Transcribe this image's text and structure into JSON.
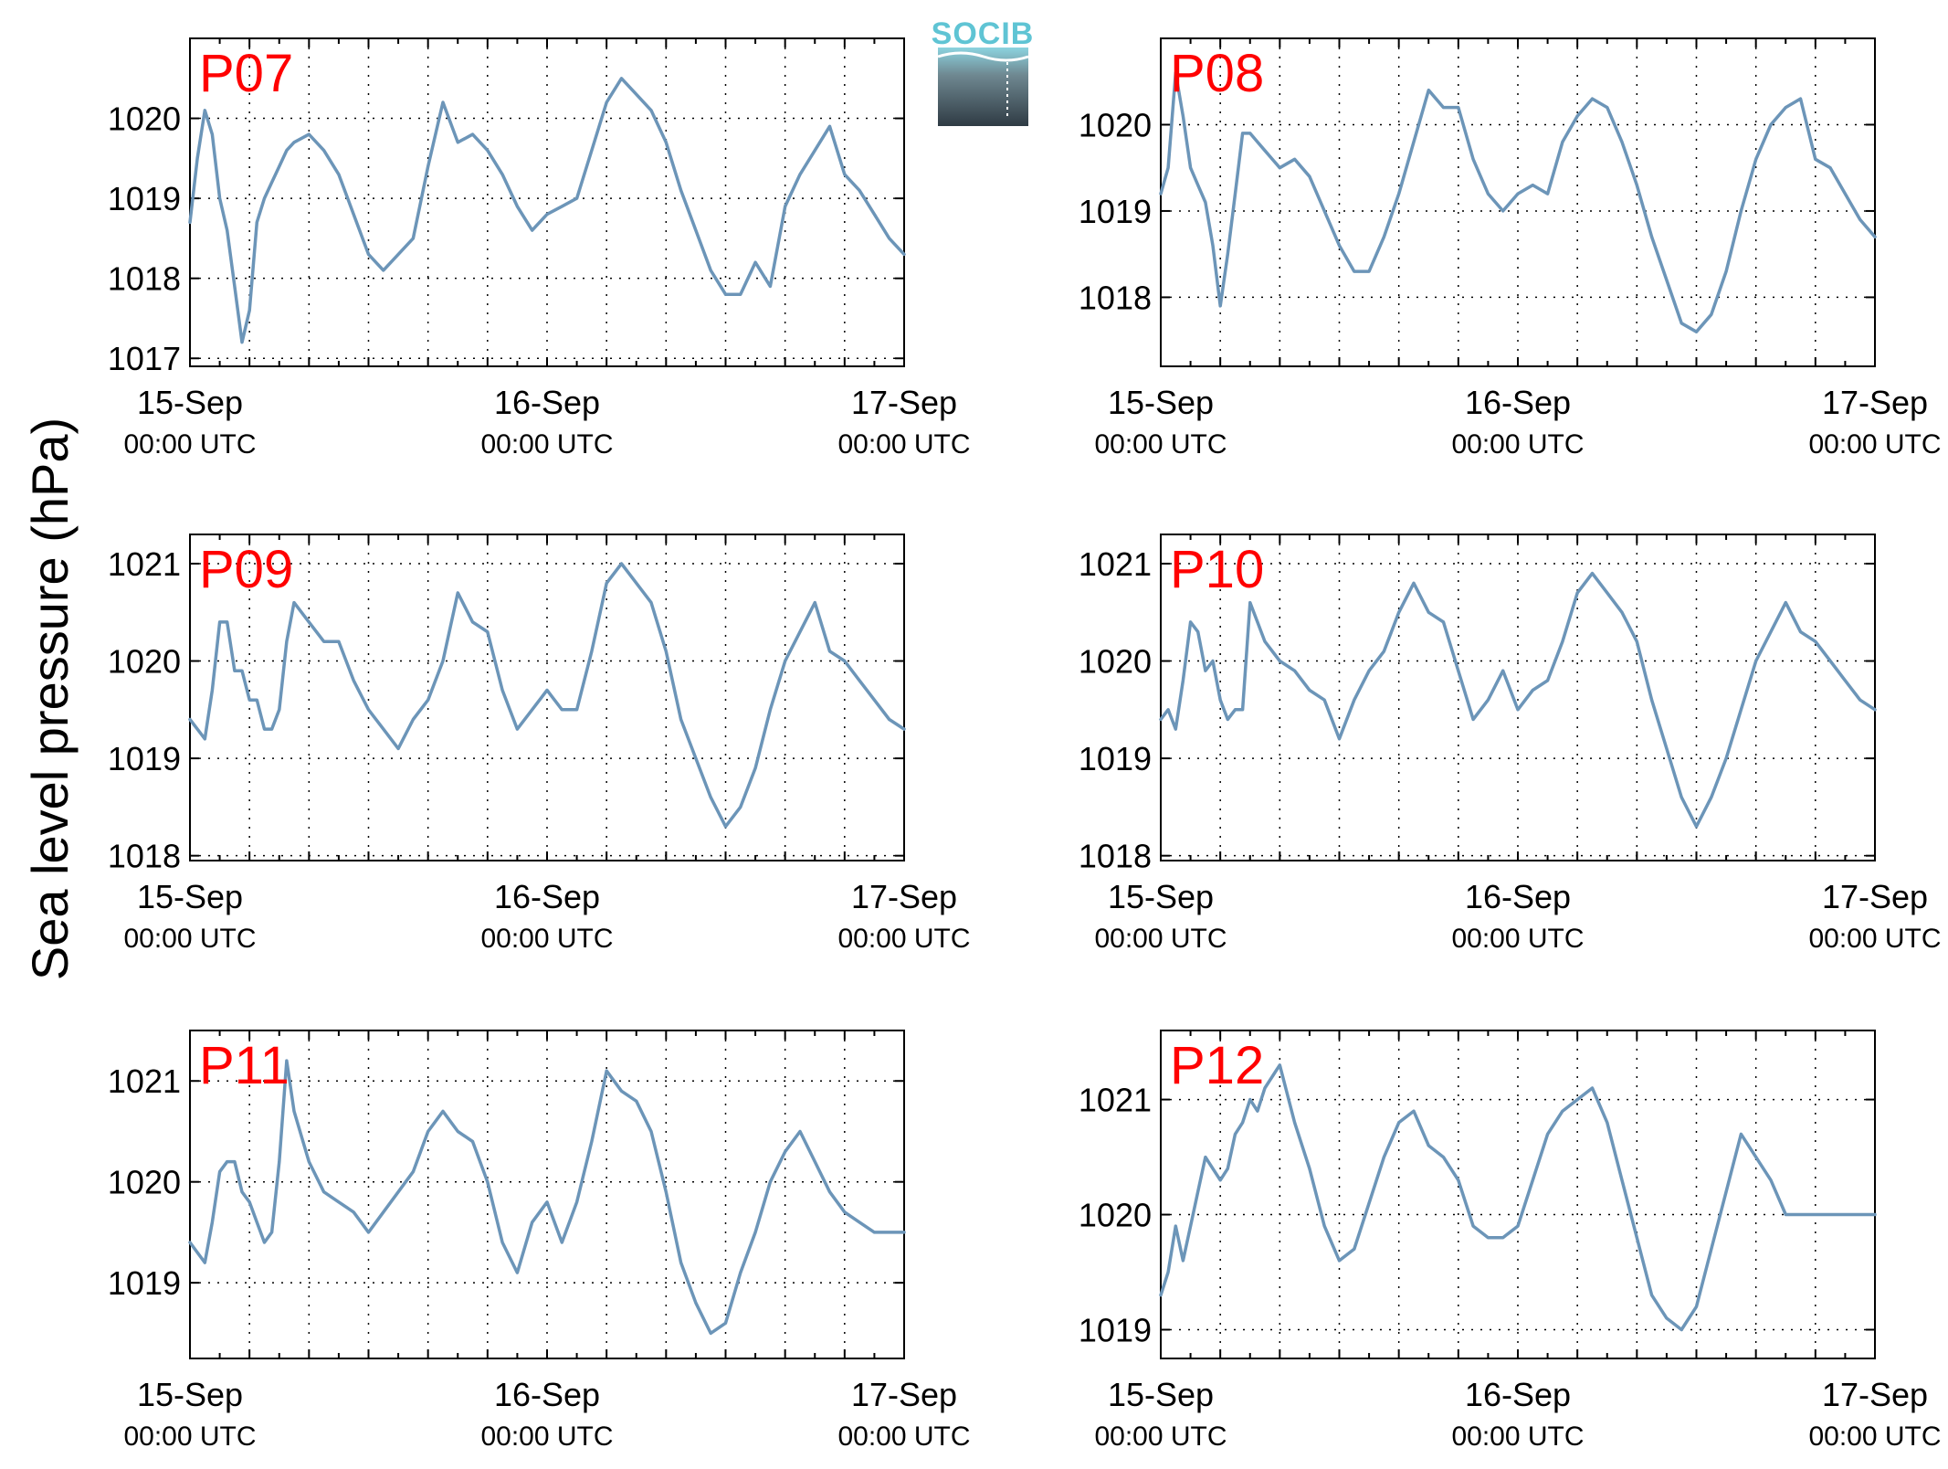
{
  "figure": {
    "ylabel": "Sea level pressure (hPa)",
    "logo_text": "SOCIB"
  },
  "colors": {
    "line": "#6c95b8",
    "label": "#ff0000",
    "logo_text": "#5fc4d4"
  },
  "chart_data": [
    {
      "type": "line",
      "label": "P07",
      "x_unit": "hours since 15-Sep 00:00 UTC",
      "xlim": [
        0,
        48
      ],
      "ylim": [
        1016.9,
        1021.0
      ],
      "yticks": [
        1017,
        1018,
        1019,
        1020
      ],
      "xticks": [
        {
          "at": 0,
          "date": "15-Sep",
          "time": "00:00 UTC"
        },
        {
          "at": 24,
          "date": "16-Sep",
          "time": "00:00 UTC"
        },
        {
          "at": 48,
          "date": "17-Sep",
          "time": "00:00 UTC"
        }
      ],
      "grid": true,
      "series": [
        {
          "x": [
            0,
            0.5,
            1,
            1.5,
            2,
            2.5,
            3,
            3.5,
            4,
            4.5,
            5,
            5.5,
            6,
            6.5,
            7,
            8,
            9,
            10,
            11,
            12,
            13,
            14,
            15,
            16,
            17,
            18,
            19,
            20,
            21,
            22,
            23,
            24,
            25,
            26,
            27,
            28,
            29,
            30,
            31,
            32,
            33,
            34,
            35,
            36,
            37,
            38,
            39,
            40,
            41,
            42,
            43,
            44,
            45,
            46,
            47,
            48
          ],
          "y": [
            1018.7,
            1019.5,
            1020.1,
            1019.8,
            1019.0,
            1018.6,
            1017.9,
            1017.2,
            1017.6,
            1018.7,
            1019.0,
            1019.2,
            1019.4,
            1019.6,
            1019.7,
            1019.8,
            1019.6,
            1019.3,
            1018.8,
            1018.3,
            1018.1,
            1018.3,
            1018.5,
            1019.4,
            1020.2,
            1019.7,
            1019.8,
            1019.6,
            1019.3,
            1018.9,
            1018.6,
            1018.8,
            1018.9,
            1019.0,
            1019.6,
            1020.2,
            1020.5,
            1020.3,
            1020.1,
            1019.7,
            1019.1,
            1018.6,
            1018.1,
            1017.8,
            1017.8,
            1018.2,
            1017.9,
            1018.9,
            1019.3,
            1019.6,
            1019.9,
            1019.3,
            1019.1,
            1018.8,
            1018.5,
            1018.3
          ]
        }
      ]
    },
    {
      "type": "line",
      "label": "P08",
      "x_unit": "hours since 15-Sep 00:00 UTC",
      "xlim": [
        0,
        48
      ],
      "ylim": [
        1017.2,
        1021.0
      ],
      "yticks": [
        1018,
        1019,
        1020
      ],
      "xticks": [
        {
          "at": 0,
          "date": "15-Sep",
          "time": "00:00 UTC"
        },
        {
          "at": 24,
          "date": "16-Sep",
          "time": "00:00 UTC"
        },
        {
          "at": 48,
          "date": "17-Sep",
          "time": "00:00 UTC"
        }
      ],
      "grid": true,
      "series": [
        {
          "x": [
            0,
            0.5,
            1,
            1.5,
            2,
            2.5,
            3,
            3.5,
            4,
            4.5,
            5,
            5.5,
            6,
            6.5,
            7,
            8,
            9,
            10,
            11,
            12,
            13,
            14,
            15,
            16,
            17,
            18,
            19,
            20,
            21,
            22,
            23,
            24,
            25,
            26,
            27,
            28,
            29,
            30,
            31,
            32,
            33,
            34,
            35,
            36,
            37,
            38,
            39,
            40,
            41,
            42,
            43,
            44,
            45,
            46,
            47,
            48
          ],
          "y": [
            1019.2,
            1019.5,
            1020.6,
            1020.1,
            1019.5,
            1019.3,
            1019.1,
            1018.6,
            1017.9,
            1018.5,
            1019.2,
            1019.9,
            1019.9,
            1019.8,
            1019.7,
            1019.5,
            1019.6,
            1019.4,
            1019.0,
            1018.6,
            1018.3,
            1018.3,
            1018.7,
            1019.2,
            1019.8,
            1020.4,
            1020.2,
            1020.2,
            1019.6,
            1019.2,
            1019.0,
            1019.2,
            1019.3,
            1019.2,
            1019.8,
            1020.1,
            1020.3,
            1020.2,
            1019.8,
            1019.3,
            1018.7,
            1018.2,
            1017.7,
            1017.6,
            1017.8,
            1018.3,
            1019.0,
            1019.6,
            1020.0,
            1020.2,
            1020.3,
            1019.6,
            1019.5,
            1019.2,
            1018.9,
            1018.7
          ]
        }
      ]
    },
    {
      "type": "line",
      "label": "P09",
      "x_unit": "hours since 15-Sep 00:00 UTC",
      "xlim": [
        0,
        48
      ],
      "ylim": [
        1017.95,
        1021.3
      ],
      "yticks": [
        1018,
        1019,
        1020,
        1021
      ],
      "xticks": [
        {
          "at": 0,
          "date": "15-Sep",
          "time": "00:00 UTC"
        },
        {
          "at": 24,
          "date": "16-Sep",
          "time": "00:00 UTC"
        },
        {
          "at": 48,
          "date": "17-Sep",
          "time": "00:00 UTC"
        }
      ],
      "grid": true,
      "series": [
        {
          "x": [
            0,
            0.5,
            1,
            1.5,
            2,
            2.5,
            3,
            3.5,
            4,
            4.5,
            5,
            5.5,
            6,
            6.5,
            7,
            8,
            9,
            10,
            11,
            12,
            13,
            14,
            15,
            16,
            17,
            18,
            19,
            20,
            21,
            22,
            23,
            24,
            25,
            26,
            27,
            28,
            29,
            30,
            31,
            32,
            33,
            34,
            35,
            36,
            37,
            38,
            39,
            40,
            41,
            42,
            43,
            44,
            45,
            46,
            47,
            48
          ],
          "y": [
            1019.4,
            1019.3,
            1019.2,
            1019.7,
            1020.4,
            1020.4,
            1019.9,
            1019.9,
            1019.6,
            1019.6,
            1019.3,
            1019.3,
            1019.5,
            1020.2,
            1020.6,
            1020.4,
            1020.2,
            1020.2,
            1019.8,
            1019.5,
            1019.3,
            1019.1,
            1019.4,
            1019.6,
            1020.0,
            1020.7,
            1020.4,
            1020.3,
            1019.7,
            1019.3,
            1019.5,
            1019.7,
            1019.5,
            1019.5,
            1020.1,
            1020.8,
            1021.0,
            1020.8,
            1020.6,
            1020.1,
            1019.4,
            1019.0,
            1018.6,
            1018.3,
            1018.5,
            1018.9,
            1019.5,
            1020.0,
            1020.3,
            1020.6,
            1020.1,
            1020.0,
            1019.8,
            1019.6,
            1019.4,
            1019.3
          ]
        }
      ]
    },
    {
      "type": "line",
      "label": "P10",
      "x_unit": "hours since 15-Sep 00:00 UTC",
      "xlim": [
        0,
        48
      ],
      "ylim": [
        1017.95,
        1021.3
      ],
      "yticks": [
        1018,
        1019,
        1020,
        1021
      ],
      "xticks": [
        {
          "at": 0,
          "date": "15-Sep",
          "time": "00:00 UTC"
        },
        {
          "at": 24,
          "date": "16-Sep",
          "time": "00:00 UTC"
        },
        {
          "at": 48,
          "date": "17-Sep",
          "time": "00:00 UTC"
        }
      ],
      "grid": true,
      "series": [
        {
          "x": [
            0,
            0.5,
            1,
            1.5,
            2,
            2.5,
            3,
            3.5,
            4,
            4.5,
            5,
            5.5,
            6,
            6.5,
            7,
            8,
            9,
            10,
            11,
            12,
            13,
            14,
            15,
            16,
            17,
            18,
            19,
            20,
            21,
            22,
            23,
            24,
            25,
            26,
            27,
            28,
            29,
            30,
            31,
            32,
            33,
            34,
            35,
            36,
            37,
            38,
            39,
            40,
            41,
            42,
            43,
            44,
            45,
            46,
            47,
            48
          ],
          "y": [
            1019.4,
            1019.5,
            1019.3,
            1019.8,
            1020.4,
            1020.3,
            1019.9,
            1020.0,
            1019.6,
            1019.4,
            1019.5,
            1019.5,
            1020.6,
            1020.4,
            1020.2,
            1020.0,
            1019.9,
            1019.7,
            1019.6,
            1019.2,
            1019.6,
            1019.9,
            1020.1,
            1020.5,
            1020.8,
            1020.5,
            1020.4,
            1019.9,
            1019.4,
            1019.6,
            1019.9,
            1019.5,
            1019.7,
            1019.8,
            1020.2,
            1020.7,
            1020.9,
            1020.7,
            1020.5,
            1020.2,
            1019.6,
            1019.1,
            1018.6,
            1018.3,
            1018.6,
            1019.0,
            1019.5,
            1020.0,
            1020.3,
            1020.6,
            1020.3,
            1020.2,
            1020.0,
            1019.8,
            1019.6,
            1019.5
          ]
        }
      ]
    },
    {
      "type": "line",
      "label": "P11",
      "x_unit": "hours since 15-Sep 00:00 UTC",
      "xlim": [
        0,
        48
      ],
      "ylim": [
        1018.25,
        1021.5
      ],
      "yticks": [
        1019,
        1020,
        1021
      ],
      "xticks": [
        {
          "at": 0,
          "date": "15-Sep",
          "time": "00:00 UTC"
        },
        {
          "at": 24,
          "date": "16-Sep",
          "time": "00:00 UTC"
        },
        {
          "at": 48,
          "date": "17-Sep",
          "time": "00:00 UTC"
        }
      ],
      "grid": true,
      "series": [
        {
          "x": [
            0,
            0.5,
            1,
            1.5,
            2,
            2.5,
            3,
            3.5,
            4,
            4.5,
            5,
            5.5,
            6,
            6.5,
            7,
            8,
            9,
            10,
            11,
            12,
            13,
            14,
            15,
            16,
            17,
            18,
            19,
            20,
            21,
            22,
            23,
            24,
            25,
            26,
            27,
            28,
            29,
            30,
            31,
            32,
            33,
            34,
            35,
            36,
            37,
            38,
            39,
            40,
            41,
            42,
            43,
            44,
            45,
            46,
            47,
            48
          ],
          "y": [
            1019.4,
            1019.3,
            1019.2,
            1019.6,
            1020.1,
            1020.2,
            1020.2,
            1019.9,
            1019.8,
            1019.6,
            1019.4,
            1019.5,
            1020.2,
            1021.2,
            1020.7,
            1020.2,
            1019.9,
            1019.8,
            1019.7,
            1019.5,
            1019.7,
            1019.9,
            1020.1,
            1020.5,
            1020.7,
            1020.5,
            1020.4,
            1020.0,
            1019.4,
            1019.1,
            1019.6,
            1019.8,
            1019.4,
            1019.8,
            1020.4,
            1021.1,
            1020.9,
            1020.8,
            1020.5,
            1019.9,
            1019.2,
            1018.8,
            1018.5,
            1018.6,
            1019.1,
            1019.5,
            1020.0,
            1020.3,
            1020.5,
            1020.2,
            1019.9,
            1019.7,
            1019.6,
            1019.5,
            1019.5,
            1019.5
          ]
        }
      ]
    },
    {
      "type": "line",
      "label": "P12",
      "x_unit": "hours since 15-Sep 00:00 UTC",
      "xlim": [
        0,
        48
      ],
      "ylim": [
        1018.75,
        1021.6
      ],
      "yticks": [
        1019,
        1020,
        1021
      ],
      "xticks": [
        {
          "at": 0,
          "date": "15-Sep",
          "time": "00:00 UTC"
        },
        {
          "at": 24,
          "date": "16-Sep",
          "time": "00:00 UTC"
        },
        {
          "at": 48,
          "date": "17-Sep",
          "time": "00:00 UTC"
        }
      ],
      "grid": true,
      "series": [
        {
          "x": [
            0,
            0.5,
            1,
            1.5,
            2,
            2.5,
            3,
            3.5,
            4,
            4.5,
            5,
            5.5,
            6,
            6.5,
            7,
            8,
            9,
            10,
            11,
            12,
            13,
            14,
            15,
            16,
            17,
            18,
            19,
            20,
            21,
            22,
            23,
            24,
            25,
            26,
            27,
            28,
            29,
            30,
            31,
            32,
            33,
            34,
            35,
            36,
            37,
            38,
            39,
            40,
            41,
            42,
            43,
            44,
            45,
            46,
            47,
            48
          ],
          "y": [
            1019.3,
            1019.5,
            1019.9,
            1019.6,
            1019.9,
            1020.2,
            1020.5,
            1020.4,
            1020.3,
            1020.4,
            1020.7,
            1020.8,
            1021.0,
            1020.9,
            1021.1,
            1021.3,
            1020.8,
            1020.4,
            1019.9,
            1019.6,
            1019.7,
            1020.1,
            1020.5,
            1020.8,
            1020.9,
            1020.6,
            1020.5,
            1020.3,
            1019.9,
            1019.8,
            1019.8,
            1019.9,
            1020.3,
            1020.7,
            1020.9,
            1021.0,
            1021.1,
            1020.8,
            1020.3,
            1019.8,
            1019.3,
            1019.1,
            1019.0,
            1019.2,
            1019.7,
            1020.2,
            1020.7,
            1020.5,
            1020.3,
            1020.0,
            1020.0,
            1020.0,
            1020.0,
            1020.0,
            1020.0,
            1020.0
          ]
        }
      ]
    }
  ]
}
